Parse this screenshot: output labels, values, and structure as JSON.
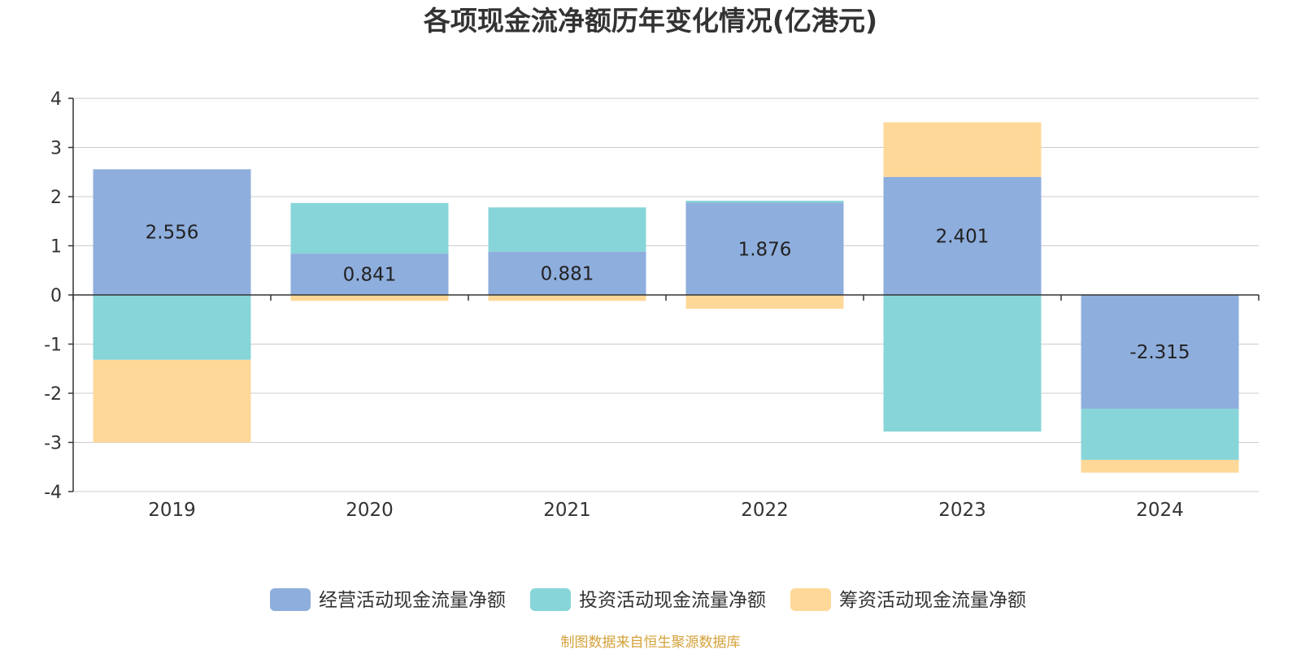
{
  "chart_data": {
    "type": "bar",
    "stacked": true,
    "title": "各项现金流净额历年变化情况(亿港元)",
    "xlabel": "",
    "ylabel": "",
    "categories": [
      "2019",
      "2020",
      "2021",
      "2022",
      "2023",
      "2024"
    ],
    "series": [
      {
        "name": "经营活动现金流量净额",
        "color": "#8eaedd",
        "values": [
          2.556,
          0.841,
          0.881,
          1.876,
          2.401,
          -2.315
        ]
      },
      {
        "name": "投资活动现金流量净额",
        "color": "#88d5d9",
        "values": [
          -1.32,
          1.03,
          0.9,
          0.04,
          -2.78,
          -1.04
        ]
      },
      {
        "name": "筹资活动现金流量净额",
        "color": "#fed898",
        "values": [
          -1.68,
          -0.12,
          -0.12,
          -0.28,
          1.11,
          -0.26
        ]
      }
    ],
    "labeled_series": 0,
    "yticks": [
      "4",
      "3",
      "2",
      "1",
      "0",
      "-1",
      "-2",
      "-3",
      "-4"
    ],
    "ylim": [
      -4,
      4
    ],
    "grid": true,
    "legend_position": "bottom"
  },
  "source": "制图数据来自恒生聚源数据库",
  "colors": {
    "axis": "#333333",
    "grid": "#cccccc",
    "source": "#d4a23a",
    "text": "#333333"
  }
}
